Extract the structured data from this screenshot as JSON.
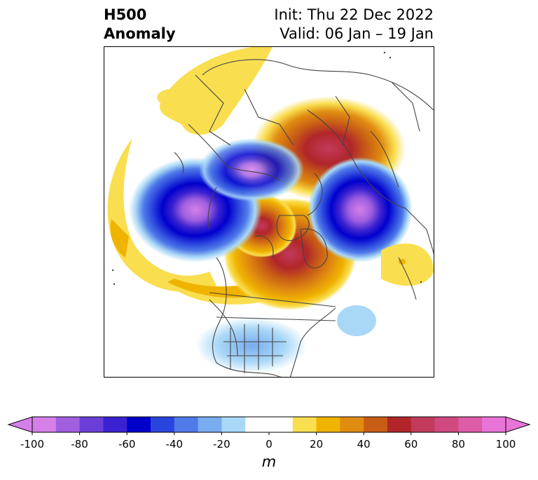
{
  "title": {
    "left_line1": "H500",
    "left_line2": "Anomaly",
    "right_line1": "Init: Thu 22 Dec 2022",
    "right_line2": "Valid: 06 Jan – 19 Jan"
  },
  "colorbar": {
    "units": "m",
    "ticks": [
      "-100",
      "-80",
      "-60",
      "-40",
      "-20",
      "0",
      "20",
      "40",
      "60",
      "80",
      "100"
    ],
    "bounds": [
      -100,
      100
    ],
    "step": 10,
    "extend": "both",
    "colors": [
      "#d580e8",
      "#a05fdf",
      "#6a3fd8",
      "#3b22d0",
      "#0000cc",
      "#2a45dd",
      "#4f7ae8",
      "#78acef",
      "#a9d8f7",
      "#ffffff",
      "#ffffff",
      "#f9de50",
      "#f0b300",
      "#e08c10",
      "#c85d16",
      "#b0262a",
      "#c23b5c",
      "#d04a80",
      "#dd5ca8",
      "#e874d8"
    ]
  },
  "colors": {
    "coastline": "#444444",
    "frame": "#000000"
  }
}
